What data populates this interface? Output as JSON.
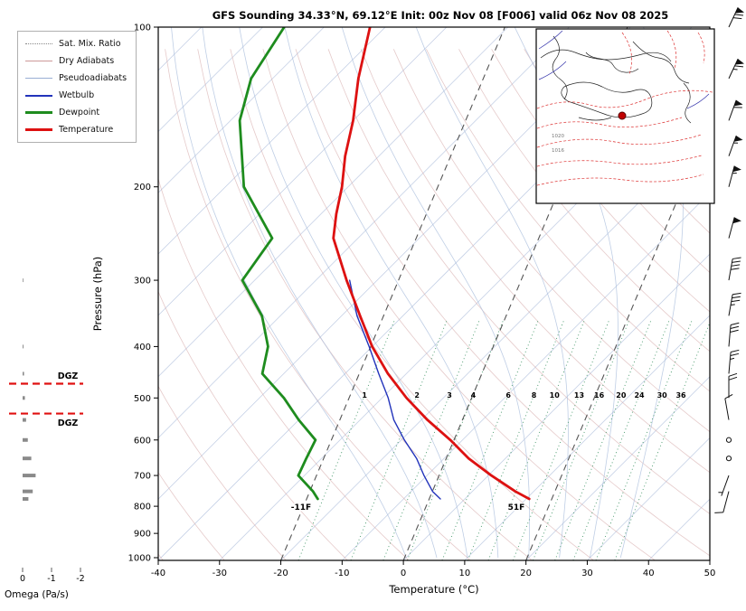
{
  "title": "GFS Sounding 34.33°N, 69.12°E Init: 00z Nov 08 [F006] valid 06z Nov 08 2025",
  "axes": {
    "pressure_label": "Pressure (hPa)",
    "temperature_label": "Temperature (°C)",
    "omega_label": "Omega (Pa/s)",
    "pressure_ticks": [
      100,
      200,
      300,
      400,
      500,
      600,
      700,
      800,
      900,
      1000
    ],
    "temperature_ticks": [
      -40,
      -30,
      -20,
      -10,
      0,
      10,
      20,
      30,
      40,
      50
    ],
    "omega_ticks": [
      0,
      -1,
      -2
    ]
  },
  "legend": {
    "items": [
      {
        "label": "Sat. Mix. Ratio",
        "color": "#888888",
        "style": "dotted",
        "weight": 1
      },
      {
        "label": "Dry Adiabats",
        "color": "#cc9999",
        "style": "solid",
        "weight": 1
      },
      {
        "label": "Pseudoadiabats",
        "color": "#99aed4",
        "style": "solid",
        "weight": 1
      },
      {
        "label": "Wetbulb",
        "color": "#2233bb",
        "style": "solid",
        "weight": 2
      },
      {
        "label": "Dewpoint",
        "color": "#1e8c1e",
        "style": "solid",
        "weight": 3
      },
      {
        "label": "Temperature",
        "color": "#dd1111",
        "style": "solid",
        "weight": 3
      }
    ]
  },
  "annotations": {
    "dgz_label": "DGZ",
    "surface_temp_label": "51F",
    "surface_dewpoint_label": "-11F"
  },
  "inset_map": {
    "contour_labels": [
      "1020",
      "1016"
    ],
    "marker_color": "#c00000"
  },
  "chart_data": {
    "type": "line",
    "subtype": "skewt_log_p_sounding",
    "title": "GFS Sounding 34.33°N, 69.12°E Init: 00z Nov 08 [F006] valid 06z Nov 08 2025",
    "xlabel": "Temperature (°C)",
    "ylabel": "Pressure (hPa)",
    "xlim": [
      -40,
      50
    ],
    "pressure_lim": [
      100,
      1040
    ],
    "surface_pressure_hpa": 775,
    "colors": {
      "temperature": "#dd1111",
      "dewpoint": "#1e8c1e",
      "wetbulb": "#2233bb",
      "isotherm": "#bcc9e2",
      "dry_adiabat": "#d4a7a7",
      "pseudoadiabat": "#a9bedc",
      "mixing_ratio": "#2e8b57",
      "dashed_guide": "#555555",
      "dgz": "#e01010",
      "omega_bar": "#8a8a8a",
      "barb": "#111111"
    },
    "temperature_profile": {
      "pressure": [
        775,
        750,
        700,
        650,
        600,
        550,
        500,
        450,
        400,
        350,
        300,
        250,
        225,
        200,
        175,
        150,
        125,
        100
      ],
      "temp_c": [
        10.5,
        7,
        0.5,
        -6,
        -12,
        -19,
        -26,
        -33,
        -40,
        -47,
        -55,
        -64,
        -67.5,
        -71,
        -75.5,
        -80,
        -86,
        -92.5
      ]
    },
    "dewpoint_profile": {
      "pressure": [
        775,
        750,
        700,
        650,
        600,
        550,
        500,
        450,
        400,
        350,
        300,
        250,
        200,
        150,
        125,
        100
      ],
      "temp_c": [
        -24,
        -26,
        -31,
        -32.5,
        -34,
        -40,
        -46,
        -53.5,
        -57,
        -63,
        -72,
        -74,
        -87,
        -98.5,
        -103.5,
        -106.5
      ]
    },
    "wetbulb_profile": {
      "pressure": [
        775,
        750,
        700,
        650,
        600,
        550,
        500,
        450,
        400,
        350,
        300
      ],
      "temp_c": [
        -4,
        -6.5,
        -10.5,
        -14.5,
        -19.5,
        -24.5,
        -29,
        -34.5,
        -40.5,
        -47.5,
        -54.5
      ]
    },
    "mixing_ratio_g_kg": [
      1,
      2,
      3,
      4,
      6,
      8,
      10,
      13,
      16,
      20,
      24,
      30,
      36
    ],
    "dgz": {
      "top_hpa": 470,
      "bottom_hpa": 535
    },
    "omega": {
      "pressure": [
        300,
        400,
        450,
        500,
        550,
        600,
        650,
        700,
        750,
        775
      ],
      "values_pa_s": [
        -0.02,
        -0.03,
        -0.05,
        -0.08,
        -0.12,
        -0.18,
        -0.3,
        -0.45,
        -0.35,
        -0.2
      ]
    },
    "winds": [
      {
        "pressure": 100,
        "speed_kt": 70,
        "direction_deg": 25
      },
      {
        "pressure": 125,
        "speed_kt": 65,
        "direction_deg": 25
      },
      {
        "pressure": 150,
        "speed_kt": 60,
        "direction_deg": 20
      },
      {
        "pressure": 175,
        "speed_kt": 55,
        "direction_deg": 20
      },
      {
        "pressure": 200,
        "speed_kt": 55,
        "direction_deg": 15
      },
      {
        "pressure": 250,
        "speed_kt": 50,
        "direction_deg": 15
      },
      {
        "pressure": 300,
        "speed_kt": 40,
        "direction_deg": 10
      },
      {
        "pressure": 350,
        "speed_kt": 35,
        "direction_deg": 10
      },
      {
        "pressure": 400,
        "speed_kt": 30,
        "direction_deg": 5
      },
      {
        "pressure": 450,
        "speed_kt": 25,
        "direction_deg": 5
      },
      {
        "pressure": 500,
        "speed_kt": 20,
        "direction_deg": 0
      },
      {
        "pressure": 550,
        "speed_kt": 10,
        "direction_deg": 350
      },
      {
        "pressure": 600,
        "speed_kt": 0,
        "direction_deg": 0
      },
      {
        "pressure": 650,
        "speed_kt": 0,
        "direction_deg": 0
      },
      {
        "pressure": 700,
        "speed_kt": 5,
        "direction_deg": 200
      },
      {
        "pressure": 750,
        "speed_kt": 10,
        "direction_deg": 195
      }
    ],
    "background": {
      "isotherms_c": {
        "min": -120,
        "max": 40,
        "step": 10
      },
      "dry_adiabats_c": {
        "min": -40,
        "max": 200,
        "step": 10
      },
      "pseudoadiabats_c": [
        0,
        5,
        10,
        15,
        20,
        25,
        30,
        35
      ],
      "dashed_guides_c": [
        -20,
        0,
        20
      ]
    },
    "legend_position": "upper left",
    "grid": false
  }
}
